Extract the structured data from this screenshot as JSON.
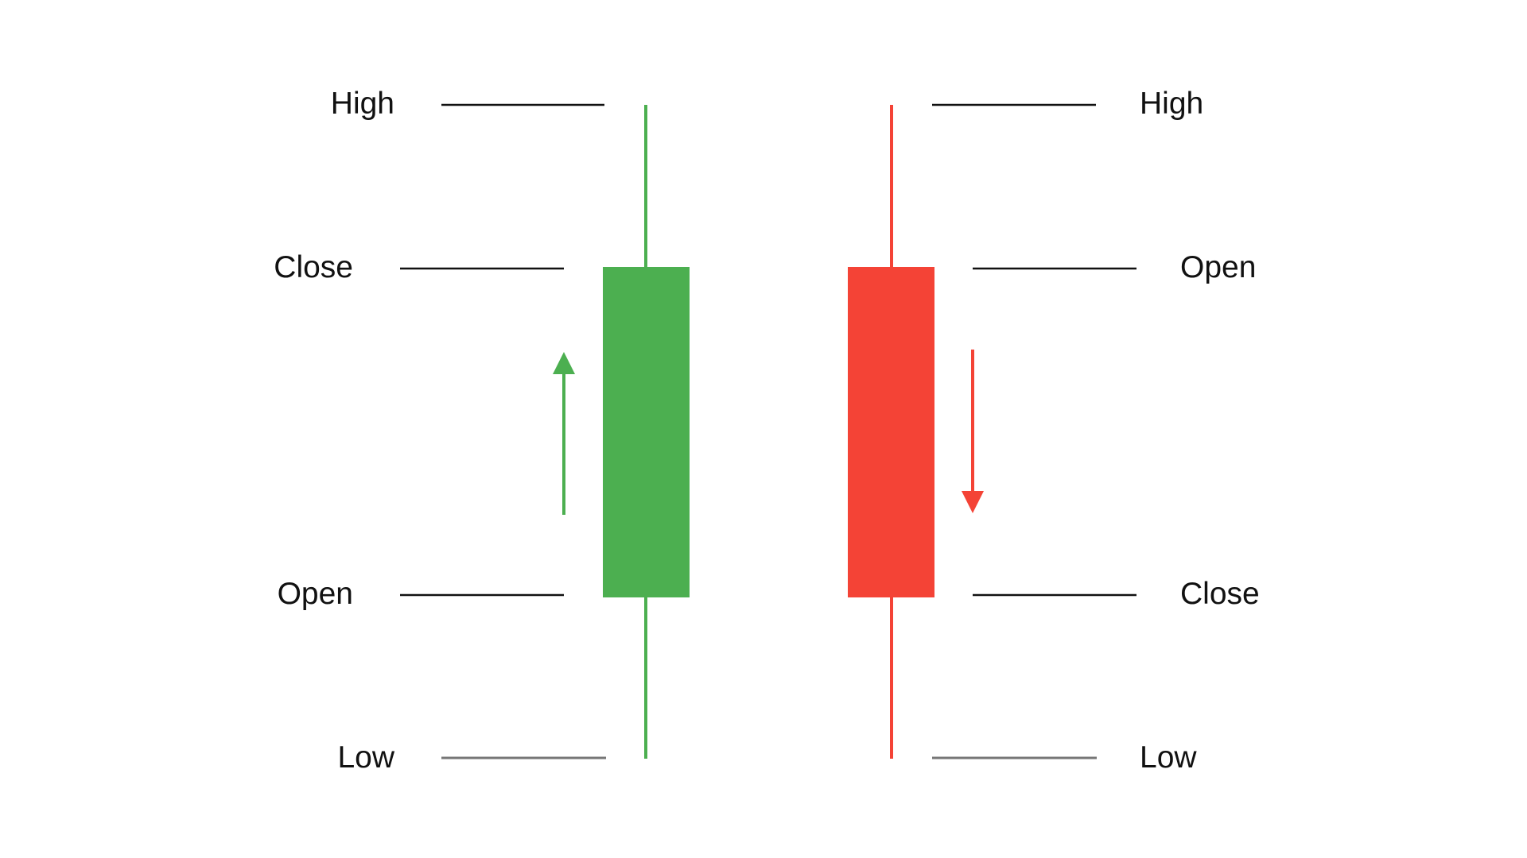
{
  "colors": {
    "bullish": "#4caf50",
    "bearish": "#f44336",
    "leader_line": "#111111",
    "low_line": "#777777",
    "label_text": "#111111"
  },
  "bullish_candle": {
    "labels": {
      "high": "High",
      "close": "Close",
      "open": "Open",
      "low": "Low"
    },
    "direction": "up"
  },
  "bearish_candle": {
    "labels": {
      "high": "High",
      "open": "Open",
      "close": "Close",
      "low": "Low"
    },
    "direction": "down"
  }
}
